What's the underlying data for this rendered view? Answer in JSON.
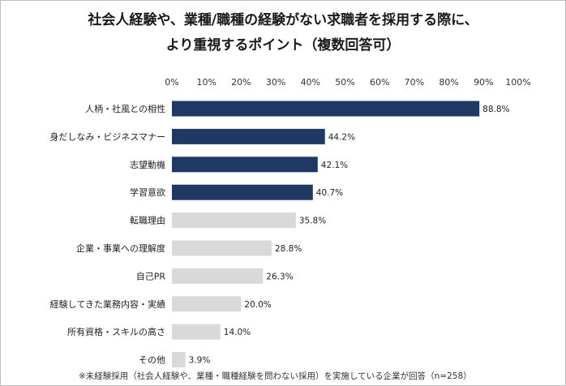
{
  "chart_data": {
    "type": "bar",
    "orientation": "horizontal",
    "title": [
      "社会人経験や、業種/職種の経験がない求職者を採用する際に、",
      "より重視するポイント（複数回答可）"
    ],
    "xlabel": "",
    "ylabel": "",
    "xlim": [
      0,
      100
    ],
    "x_ticks": [
      "0%",
      "10%",
      "20%",
      "30%",
      "40%",
      "50%",
      "60%",
      "70%",
      "80%",
      "90%",
      "100%"
    ],
    "value_suffix": "%",
    "grid": false,
    "legend": "none",
    "categories": [
      "人柄・社風との相性",
      "身だしなみ・ビジネスマナー",
      "志望動機",
      "学習意欲",
      "転職理由",
      "企業・事業への理解度",
      "自己PR",
      "経験してきた業務内容・実績",
      "所有資格・スキルの高さ",
      "その他"
    ],
    "values": [
      88.8,
      44.2,
      42.1,
      40.7,
      35.8,
      28.8,
      26.3,
      20.0,
      14.0,
      3.9
    ],
    "value_labels": [
      "88.8%",
      "44.2%",
      "42.1%",
      "40.7%",
      "35.8%",
      "28.8%",
      "26.3%",
      "20.0%",
      "14.0%",
      "3.9%"
    ],
    "highlight_count": 4,
    "colors": {
      "highlight": "#1f3864",
      "other": "#d9d9d9"
    }
  },
  "footnote": "※未経験採用（社会人経験や、業種・職種経験を問わない採用）を実施している企業が回答（n=258）"
}
